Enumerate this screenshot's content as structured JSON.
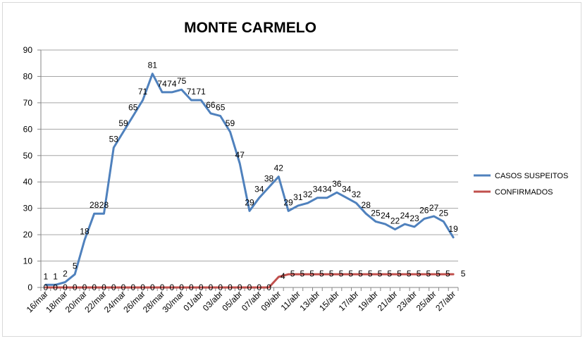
{
  "chart_data": {
    "type": "line",
    "title": "MONTE CARMELO",
    "xlabel": "",
    "ylabel": "",
    "ylim": [
      0,
      90
    ],
    "yticks": [
      0,
      10,
      20,
      30,
      40,
      50,
      60,
      70,
      80,
      90
    ],
    "grid": true,
    "legend_position": "right",
    "categories": [
      "16/mar",
      "17/mar",
      "18/mar",
      "19/mar",
      "20/mar",
      "21/mar",
      "22/mar",
      "23/mar",
      "24/mar",
      "25/mar",
      "26/mar",
      "27/mar",
      "28/mar",
      "29/mar",
      "30/mar",
      "31/mar",
      "01/abr",
      "02/abr",
      "03/abr",
      "04/abr",
      "05/abr",
      "06/abr",
      "07/abr",
      "08/abr",
      "09/abr",
      "10/abr",
      "11/abr",
      "12/abr",
      "13/abr",
      "14/abr",
      "15/abr",
      "16/abr",
      "17/abr",
      "18/abr",
      "19/abr",
      "20/abr",
      "21/abr",
      "22/abr",
      "23/abr",
      "24/abr",
      "25/abr",
      "26/abr",
      "27/abr"
    ],
    "tick_labels": [
      "16/mar",
      "18/mar",
      "20/mar",
      "22/mar",
      "24/mar",
      "26/mar",
      "28/mar",
      "30/mar",
      "01/abr",
      "03/abr",
      "05/abr",
      "07/abr",
      "09/abr",
      "11/abr",
      "13/abr",
      "15/abr",
      "17/abr",
      "19/abr",
      "21/abr",
      "23/abr",
      "25/abr",
      "27/abr"
    ],
    "series": [
      {
        "name": "CASOS SUSPEITOS",
        "color": "#4f81bd",
        "values": [
          1,
          1,
          2,
          5,
          18,
          28,
          28,
          53,
          59,
          65,
          71,
          81,
          74,
          74,
          75,
          71,
          71,
          66,
          65,
          59,
          47,
          29,
          34,
          38,
          42,
          29,
          31,
          32,
          34,
          34,
          36,
          34,
          32,
          28,
          25,
          24,
          22,
          24,
          23,
          26,
          27,
          25,
          19
        ]
      },
      {
        "name": "CONFIRMADOS",
        "color": "#c0504d",
        "values": [
          0,
          0,
          0,
          0,
          0,
          0,
          0,
          0,
          0,
          0,
          0,
          0,
          0,
          0,
          0,
          0,
          0,
          0,
          0,
          0,
          0,
          0,
          0,
          0,
          4,
          5,
          5,
          5,
          5,
          5,
          5,
          5,
          5,
          5,
          5,
          5,
          5,
          5,
          5,
          5,
          5,
          5,
          5
        ]
      }
    ]
  }
}
